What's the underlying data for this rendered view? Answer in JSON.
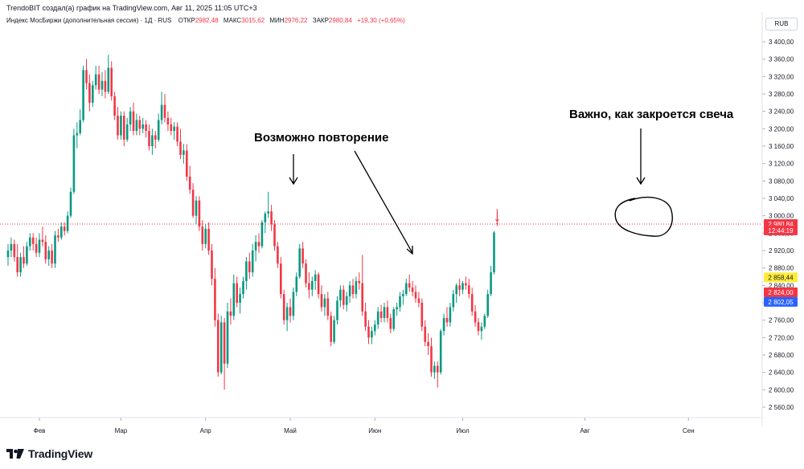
{
  "header": {
    "attribution": "TrendoBIT создал(а) график на TradingView.com, Авг 11, 2025 11:05 UTC+3",
    "instrument": "Индекс МосБиржи (дополнительная сессия) · 1Д · RUS",
    "ohlc": [
      {
        "label": "ОТКР",
        "value": "2982,48"
      },
      {
        "label": "МАКС",
        "value": "3015,62"
      },
      {
        "label": "МИН",
        "value": "2976,22"
      },
      {
        "label": "ЗАКР",
        "value": "2980,84"
      }
    ],
    "change": "+19,30 (+0,65%)",
    "currency": "RUB"
  },
  "annotations": {
    "left": "Возможно повторение",
    "right": "Важно, как закроется свеча"
  },
  "price_tags": [
    {
      "text": "2 980,84",
      "bg": "#f23645",
      "fg": "#ffffff",
      "price": 2980.84
    },
    {
      "text": "12:44:19",
      "bg": "#f23645",
      "fg": "#ffffff",
      "price": 2966.5
    },
    {
      "text": "2 858,44",
      "bg": "#ffeb3b",
      "fg": "#131722",
      "price": 2858.44
    },
    {
      "text": "2 824,00",
      "bg": "#f23645",
      "fg": "#ffffff",
      "price": 2824.0
    },
    {
      "text": "2 802,05",
      "bg": "#2962ff",
      "fg": "#ffffff",
      "price": 2802.05
    }
  ],
  "brand": {
    "name": "TradingView"
  },
  "colors": {
    "up": "#089981",
    "down": "#f23645",
    "axis_text": "#131722"
  },
  "chart_data": {
    "type": "candlestick",
    "ylim": [
      2540,
      3420
    ],
    "yticks": [
      2560,
      2600,
      2640,
      2680,
      2720,
      2760,
      2800,
      2840,
      2880,
      2920,
      2960,
      3000,
      3040,
      3080,
      3120,
      3160,
      3200,
      3240,
      3280,
      3320,
      3360,
      3400
    ],
    "ytick_labels": [
      "2 560,00",
      "2 600,00",
      "2 640,00",
      "2 680,00",
      "2 720,00",
      "2 760,00",
      "2 800,00",
      "2 840,00",
      "2 880,00",
      "2 920,00",
      "2 960,00",
      "3 000,00",
      "3 040,00",
      "3 080,00",
      "3 120,00",
      "3 160,00",
      "3 200,00",
      "3 240,00",
      "3 280,00",
      "3 320,00",
      "3 360,00",
      "3 400,00"
    ],
    "xticks": [
      {
        "label": "Фев",
        "index": 10
      },
      {
        "label": "Мар",
        "index": 36
      },
      {
        "label": "Апр",
        "index": 63
      },
      {
        "label": "Май",
        "index": 90
      },
      {
        "label": "Июн",
        "index": 117
      },
      {
        "label": "Июл",
        "index": 145
      },
      {
        "label": "Авг",
        "index": 184
      },
      {
        "label": "Сен",
        "index": 217
      }
    ],
    "current_price": 2980.84,
    "candles": [
      {
        "o": 2905,
        "h": 2935,
        "l": 2885,
        "c": 2920
      },
      {
        "o": 2920,
        "h": 2950,
        "l": 2905,
        "c": 2935
      },
      {
        "o": 2935,
        "h": 2945,
        "l": 2895,
        "c": 2905
      },
      {
        "o": 2905,
        "h": 2935,
        "l": 2860,
        "c": 2870
      },
      {
        "o": 2870,
        "h": 2915,
        "l": 2860,
        "c": 2905
      },
      {
        "o": 2905,
        "h": 2930,
        "l": 2880,
        "c": 2890
      },
      {
        "o": 2890,
        "h": 2940,
        "l": 2885,
        "c": 2930
      },
      {
        "o": 2930,
        "h": 2960,
        "l": 2920,
        "c": 2950
      },
      {
        "o": 2950,
        "h": 2960,
        "l": 2920,
        "c": 2935
      },
      {
        "o": 2935,
        "h": 2950,
        "l": 2905,
        "c": 2915
      },
      {
        "o": 2915,
        "h": 2960,
        "l": 2905,
        "c": 2945
      },
      {
        "o": 2945,
        "h": 2975,
        "l": 2930,
        "c": 2940
      },
      {
        "o": 2940,
        "h": 2955,
        "l": 2890,
        "c": 2900
      },
      {
        "o": 2900,
        "h": 2930,
        "l": 2885,
        "c": 2920
      },
      {
        "o": 2920,
        "h": 2935,
        "l": 2880,
        "c": 2890
      },
      {
        "o": 2890,
        "h": 2965,
        "l": 2880,
        "c": 2955
      },
      {
        "o": 2955,
        "h": 2970,
        "l": 2940,
        "c": 2950
      },
      {
        "o": 2950,
        "h": 2985,
        "l": 2945,
        "c": 2975
      },
      {
        "o": 2975,
        "h": 2985,
        "l": 2955,
        "c": 2965
      },
      {
        "o": 2965,
        "h": 3010,
        "l": 2960,
        "c": 3000
      },
      {
        "o": 3000,
        "h": 3065,
        "l": 2995,
        "c": 3055
      },
      {
        "o": 3055,
        "h": 3200,
        "l": 3050,
        "c": 3185
      },
      {
        "o": 3185,
        "h": 3215,
        "l": 3155,
        "c": 3190
      },
      {
        "o": 3190,
        "h": 3245,
        "l": 3185,
        "c": 3220
      },
      {
        "o": 3220,
        "h": 3345,
        "l": 3215,
        "c": 3335
      },
      {
        "o": 3335,
        "h": 3360,
        "l": 3290,
        "c": 3305
      },
      {
        "o": 3305,
        "h": 3325,
        "l": 3240,
        "c": 3260
      },
      {
        "o": 3260,
        "h": 3310,
        "l": 3250,
        "c": 3300
      },
      {
        "o": 3300,
        "h": 3345,
        "l": 3290,
        "c": 3325
      },
      {
        "o": 3325,
        "h": 3345,
        "l": 3280,
        "c": 3290
      },
      {
        "o": 3290,
        "h": 3330,
        "l": 3275,
        "c": 3310
      },
      {
        "o": 3310,
        "h": 3335,
        "l": 3270,
        "c": 3285
      },
      {
        "o": 3285,
        "h": 3370,
        "l": 3280,
        "c": 3340
      },
      {
        "o": 3340,
        "h": 3355,
        "l": 3265,
        "c": 3275
      },
      {
        "o": 3275,
        "h": 3285,
        "l": 3220,
        "c": 3230
      },
      {
        "o": 3230,
        "h": 3250,
        "l": 3175,
        "c": 3185
      },
      {
        "o": 3185,
        "h": 3240,
        "l": 3175,
        "c": 3230
      },
      {
        "o": 3230,
        "h": 3240,
        "l": 3160,
        "c": 3175
      },
      {
        "o": 3175,
        "h": 3225,
        "l": 3170,
        "c": 3210
      },
      {
        "o": 3210,
        "h": 3250,
        "l": 3195,
        "c": 3240
      },
      {
        "o": 3240,
        "h": 3260,
        "l": 3185,
        "c": 3195
      },
      {
        "o": 3195,
        "h": 3235,
        "l": 3185,
        "c": 3220
      },
      {
        "o": 3220,
        "h": 3230,
        "l": 3185,
        "c": 3200
      },
      {
        "o": 3200,
        "h": 3225,
        "l": 3190,
        "c": 3210
      },
      {
        "o": 3210,
        "h": 3220,
        "l": 3180,
        "c": 3195
      },
      {
        "o": 3195,
        "h": 3210,
        "l": 3150,
        "c": 3160
      },
      {
        "o": 3160,
        "h": 3200,
        "l": 3140,
        "c": 3185
      },
      {
        "o": 3185,
        "h": 3195,
        "l": 3155,
        "c": 3175
      },
      {
        "o": 3175,
        "h": 3235,
        "l": 3170,
        "c": 3220
      },
      {
        "o": 3220,
        "h": 3285,
        "l": 3210,
        "c": 3255
      },
      {
        "o": 3255,
        "h": 3280,
        "l": 3215,
        "c": 3225
      },
      {
        "o": 3225,
        "h": 3240,
        "l": 3195,
        "c": 3210
      },
      {
        "o": 3210,
        "h": 3225,
        "l": 3185,
        "c": 3195
      },
      {
        "o": 3195,
        "h": 3215,
        "l": 3175,
        "c": 3205
      },
      {
        "o": 3205,
        "h": 3215,
        "l": 3160,
        "c": 3170
      },
      {
        "o": 3170,
        "h": 3200,
        "l": 3130,
        "c": 3140
      },
      {
        "o": 3140,
        "h": 3165,
        "l": 3120,
        "c": 3150
      },
      {
        "o": 3150,
        "h": 3165,
        "l": 3080,
        "c": 3090
      },
      {
        "o": 3090,
        "h": 3115,
        "l": 3050,
        "c": 3060
      },
      {
        "o": 3060,
        "h": 3075,
        "l": 2995,
        "c": 3000
      },
      {
        "o": 3000,
        "h": 3045,
        "l": 2980,
        "c": 3035
      },
      {
        "o": 3035,
        "h": 3045,
        "l": 2965,
        "c": 2975
      },
      {
        "o": 2975,
        "h": 2990,
        "l": 2920,
        "c": 2935
      },
      {
        "o": 2935,
        "h": 2980,
        "l": 2925,
        "c": 2970
      },
      {
        "o": 2970,
        "h": 2985,
        "l": 2910,
        "c": 2920
      },
      {
        "o": 2920,
        "h": 2935,
        "l": 2840,
        "c": 2855
      },
      {
        "o": 2855,
        "h": 2880,
        "l": 2745,
        "c": 2760
      },
      {
        "o": 2760,
        "h": 2775,
        "l": 2630,
        "c": 2640
      },
      {
        "o": 2640,
        "h": 2770,
        "l": 2635,
        "c": 2755
      },
      {
        "o": 2755,
        "h": 2765,
        "l": 2600,
        "c": 2660
      },
      {
        "o": 2660,
        "h": 2800,
        "l": 2650,
        "c": 2780
      },
      {
        "o": 2780,
        "h": 2810,
        "l": 2750,
        "c": 2770
      },
      {
        "o": 2770,
        "h": 2865,
        "l": 2760,
        "c": 2845
      },
      {
        "o": 2845,
        "h": 2860,
        "l": 2790,
        "c": 2800
      },
      {
        "o": 2800,
        "h": 2835,
        "l": 2775,
        "c": 2820
      },
      {
        "o": 2820,
        "h": 2860,
        "l": 2810,
        "c": 2850
      },
      {
        "o": 2850,
        "h": 2905,
        "l": 2830,
        "c": 2895
      },
      {
        "o": 2895,
        "h": 2915,
        "l": 2855,
        "c": 2870
      },
      {
        "o": 2870,
        "h": 2935,
        "l": 2860,
        "c": 2920
      },
      {
        "o": 2920,
        "h": 2955,
        "l": 2895,
        "c": 2940
      },
      {
        "o": 2940,
        "h": 2960,
        "l": 2915,
        "c": 2930
      },
      {
        "o": 2930,
        "h": 2990,
        "l": 2925,
        "c": 2985
      },
      {
        "o": 2985,
        "h": 3010,
        "l": 2960,
        "c": 3005
      },
      {
        "o": 3005,
        "h": 3055,
        "l": 2995,
        "c": 3010
      },
      {
        "o": 3010,
        "h": 3025,
        "l": 2965,
        "c": 2980
      },
      {
        "o": 2980,
        "h": 2990,
        "l": 2920,
        "c": 2930
      },
      {
        "o": 2930,
        "h": 2940,
        "l": 2880,
        "c": 2890
      },
      {
        "o": 2890,
        "h": 2905,
        "l": 2810,
        "c": 2820
      },
      {
        "o": 2820,
        "h": 2830,
        "l": 2750,
        "c": 2760
      },
      {
        "o": 2760,
        "h": 2800,
        "l": 2735,
        "c": 2790
      },
      {
        "o": 2790,
        "h": 2810,
        "l": 2755,
        "c": 2770
      },
      {
        "o": 2770,
        "h": 2835,
        "l": 2760,
        "c": 2825
      },
      {
        "o": 2825,
        "h": 2870,
        "l": 2815,
        "c": 2860
      },
      {
        "o": 2860,
        "h": 2935,
        "l": 2855,
        "c": 2925
      },
      {
        "o": 2925,
        "h": 2940,
        "l": 2880,
        "c": 2890
      },
      {
        "o": 2890,
        "h": 2900,
        "l": 2835,
        "c": 2845
      },
      {
        "o": 2845,
        "h": 2870,
        "l": 2810,
        "c": 2830
      },
      {
        "o": 2830,
        "h": 2860,
        "l": 2815,
        "c": 2850
      },
      {
        "o": 2850,
        "h": 2875,
        "l": 2830,
        "c": 2865
      },
      {
        "o": 2865,
        "h": 2870,
        "l": 2810,
        "c": 2820
      },
      {
        "o": 2820,
        "h": 2840,
        "l": 2780,
        "c": 2790
      },
      {
        "o": 2790,
        "h": 2820,
        "l": 2770,
        "c": 2810
      },
      {
        "o": 2810,
        "h": 2825,
        "l": 2760,
        "c": 2770
      },
      {
        "o": 2770,
        "h": 2780,
        "l": 2700,
        "c": 2710
      },
      {
        "o": 2710,
        "h": 2770,
        "l": 2705,
        "c": 2760
      },
      {
        "o": 2760,
        "h": 2815,
        "l": 2750,
        "c": 2805
      },
      {
        "o": 2805,
        "h": 2840,
        "l": 2790,
        "c": 2830
      },
      {
        "o": 2830,
        "h": 2840,
        "l": 2785,
        "c": 2795
      },
      {
        "o": 2795,
        "h": 2825,
        "l": 2780,
        "c": 2815
      },
      {
        "o": 2815,
        "h": 2850,
        "l": 2800,
        "c": 2840
      },
      {
        "o": 2840,
        "h": 2855,
        "l": 2810,
        "c": 2820
      },
      {
        "o": 2820,
        "h": 2860,
        "l": 2810,
        "c": 2850
      },
      {
        "o": 2850,
        "h": 2870,
        "l": 2830,
        "c": 2845
      },
      {
        "o": 2845,
        "h": 2910,
        "l": 2770,
        "c": 2780
      },
      {
        "o": 2780,
        "h": 2800,
        "l": 2735,
        "c": 2745
      },
      {
        "o": 2745,
        "h": 2760,
        "l": 2705,
        "c": 2720
      },
      {
        "o": 2720,
        "h": 2745,
        "l": 2705,
        "c": 2735
      },
      {
        "o": 2735,
        "h": 2760,
        "l": 2725,
        "c": 2750
      },
      {
        "o": 2750,
        "h": 2790,
        "l": 2740,
        "c": 2780
      },
      {
        "o": 2780,
        "h": 2795,
        "l": 2755,
        "c": 2765
      },
      {
        "o": 2765,
        "h": 2800,
        "l": 2755,
        "c": 2790
      },
      {
        "o": 2790,
        "h": 2805,
        "l": 2755,
        "c": 2765
      },
      {
        "o": 2765,
        "h": 2775,
        "l": 2730,
        "c": 2740
      },
      {
        "o": 2740,
        "h": 2790,
        "l": 2735,
        "c": 2785
      },
      {
        "o": 2785,
        "h": 2800,
        "l": 2770,
        "c": 2790
      },
      {
        "o": 2790,
        "h": 2825,
        "l": 2780,
        "c": 2815
      },
      {
        "o": 2815,
        "h": 2830,
        "l": 2795,
        "c": 2820
      },
      {
        "o": 2820,
        "h": 2855,
        "l": 2815,
        "c": 2845
      },
      {
        "o": 2845,
        "h": 2865,
        "l": 2825,
        "c": 2835
      },
      {
        "o": 2835,
        "h": 2850,
        "l": 2815,
        "c": 2825
      },
      {
        "o": 2825,
        "h": 2840,
        "l": 2800,
        "c": 2810
      },
      {
        "o": 2810,
        "h": 2825,
        "l": 2790,
        "c": 2800
      },
      {
        "o": 2800,
        "h": 2810,
        "l": 2735,
        "c": 2745
      },
      {
        "o": 2745,
        "h": 2760,
        "l": 2700,
        "c": 2710
      },
      {
        "o": 2710,
        "h": 2730,
        "l": 2680,
        "c": 2700
      },
      {
        "o": 2700,
        "h": 2720,
        "l": 2630,
        "c": 2640
      },
      {
        "o": 2640,
        "h": 2665,
        "l": 2625,
        "c": 2655
      },
      {
        "o": 2655,
        "h": 2665,
        "l": 2605,
        "c": 2640
      },
      {
        "o": 2640,
        "h": 2740,
        "l": 2635,
        "c": 2735
      },
      {
        "o": 2735,
        "h": 2775,
        "l": 2725,
        "c": 2765
      },
      {
        "o": 2765,
        "h": 2790,
        "l": 2745,
        "c": 2755
      },
      {
        "o": 2755,
        "h": 2800,
        "l": 2745,
        "c": 2790
      },
      {
        "o": 2790,
        "h": 2830,
        "l": 2780,
        "c": 2820
      },
      {
        "o": 2820,
        "h": 2845,
        "l": 2800,
        "c": 2840
      },
      {
        "o": 2840,
        "h": 2855,
        "l": 2815,
        "c": 2830
      },
      {
        "o": 2830,
        "h": 2850,
        "l": 2820,
        "c": 2845
      },
      {
        "o": 2845,
        "h": 2860,
        "l": 2830,
        "c": 2840
      },
      {
        "o": 2840,
        "h": 2855,
        "l": 2810,
        "c": 2820
      },
      {
        "o": 2820,
        "h": 2835,
        "l": 2770,
        "c": 2780
      },
      {
        "o": 2780,
        "h": 2795,
        "l": 2745,
        "c": 2755
      },
      {
        "o": 2755,
        "h": 2765,
        "l": 2725,
        "c": 2735
      },
      {
        "o": 2735,
        "h": 2755,
        "l": 2715,
        "c": 2745
      },
      {
        "o": 2745,
        "h": 2775,
        "l": 2740,
        "c": 2770
      },
      {
        "o": 2770,
        "h": 2830,
        "l": 2765,
        "c": 2820
      },
      {
        "o": 2820,
        "h": 2885,
        "l": 2815,
        "c": 2870
      },
      {
        "o": 2870,
        "h": 2965,
        "l": 2865,
        "c": 2961.54
      },
      {
        "o": 2982.48,
        "h": 3015.62,
        "l": 2976.22,
        "c": 2980.84
      }
    ],
    "volume_marker_hint": null
  }
}
